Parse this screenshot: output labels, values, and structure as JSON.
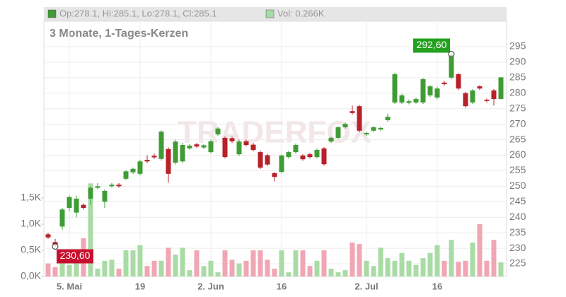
{
  "chart_data": {
    "type": "candlestick",
    "legend": {
      "ohlc": "Op:278.1, Hi:285.1, Lo:278.1, Cl:285.1",
      "volume": "Vol: 0.266K"
    },
    "subtitle": "3 Monate, 1-Tages-Kerzen",
    "watermark": "TRADERFOX",
    "categories": [
      null,
      null,
      null,
      "5. Mai",
      null,
      null,
      null,
      null,
      null,
      null,
      null,
      null,
      null,
      "19",
      null,
      null,
      null,
      null,
      null,
      null,
      null,
      null,
      null,
      "2. Jun",
      null,
      null,
      null,
      null,
      null,
      null,
      null,
      null,
      null,
      "16",
      null,
      null,
      null,
      null,
      null,
      null,
      null,
      null,
      null,
      null,
      null,
      "2. Jul",
      null,
      null,
      null,
      null,
      null,
      null,
      null,
      null,
      null,
      "16",
      null,
      null,
      null,
      null,
      null,
      null,
      null,
      null,
      null
    ],
    "open": [
      234.5,
      232,
      237,
      243,
      241.5,
      244,
      246,
      249.5,
      245,
      250,
      250.5,
      252.4,
      254.5,
      254,
      258.5,
      259.8,
      258.8,
      262,
      257.6,
      258,
      262.2,
      263.5,
      262.5,
      261,
      266.7,
      265.6,
      265.5,
      260.3,
      264.5,
      263.4,
      261,
      260,
      254.2,
      254.6,
      259.4,
      261,
      259.9,
      260.3,
      259.4,
      262.2,
      264.4,
      265.6,
      269,
      274.2,
      275.8,
      266.7,
      267.9,
      268.3,
      271.3,
      277,
      277,
      276.9,
      277,
      277,
      279.3,
      278.6,
      283.4,
      285,
      286.1,
      280,
      277,
      282.2,
      277.9,
      280.9,
      278.1
    ],
    "high": [
      235,
      233,
      243,
      247,
      247,
      244.5,
      250,
      251,
      249,
      251,
      251,
      255.2,
      256,
      258.5,
      260,
      260.5,
      268,
      262.5,
      265,
      264,
      263.6,
      264,
      263.6,
      265,
      269,
      266,
      266,
      265,
      265,
      264,
      261.5,
      260.5,
      254.6,
      260.3,
      261.5,
      263.8,
      260.3,
      260.8,
      262.2,
      262.6,
      266,
      269.4,
      270.5,
      276,
      276.2,
      267.6,
      269.4,
      269.2,
      273.4,
      286.6,
      279.8,
      278,
      278.6,
      284.9,
      282.6,
      282,
      284,
      292.6,
      286.5,
      280.4,
      281.3,
      282.6,
      278.3,
      281.3,
      285.1
    ],
    "low": [
      233,
      230.6,
      236,
      242,
      240,
      242.5,
      244,
      249,
      243,
      249.5,
      249.5,
      252,
      254,
      253.5,
      257.5,
      258.8,
      258.3,
      251.2,
      257,
      257.5,
      261.8,
      262.3,
      262,
      260.5,
      266.2,
      259,
      264,
      259.8,
      262.8,
      261.2,
      255.5,
      256.5,
      251.6,
      254.1,
      258.9,
      260.5,
      258.2,
      258.9,
      259,
      256.6,
      264,
      265.2,
      268.6,
      273.1,
      267.4,
      266.3,
      267.5,
      267.9,
      270.8,
      276.5,
      276.5,
      276.4,
      276.6,
      276.5,
      278.8,
      278.1,
      282.4,
      284.5,
      281,
      275.3,
      276.5,
      281,
      277,
      276,
      278.1
    ],
    "close": [
      233.5,
      231,
      242.5,
      246.5,
      246,
      243,
      249.5,
      250,
      248.5,
      250.5,
      250,
      254.8,
      255.6,
      258,
      258,
      259.3,
      267.6,
      254,
      264.4,
      263.3,
      263.1,
      262.8,
      263.2,
      264.5,
      268.6,
      259.4,
      264.5,
      264.4,
      263.3,
      261.7,
      256,
      257,
      253,
      259.9,
      261,
      263.3,
      258.7,
      259.4,
      261.7,
      257.1,
      265.6,
      269,
      270.1,
      273.6,
      267.9,
      267.2,
      269,
      268.8,
      272.4,
      286.1,
      279.3,
      277.4,
      278.1,
      284.5,
      282.2,
      281.5,
      282.9,
      292.3,
      281.5,
      275.8,
      280.9,
      281.5,
      277.5,
      278.1,
      285.1
    ],
    "volume": [
      0.25,
      0.18,
      0.3,
      0.22,
      0.35,
      0.73,
      1.78,
      0.15,
      0.3,
      0.32,
      0.15,
      0.5,
      0.5,
      0.6,
      0.2,
      0.3,
      0.3,
      0.55,
      0.42,
      0.55,
      0.12,
      0.5,
      0.2,
      0.3,
      0.08,
      0.5,
      0.32,
      0.25,
      0.3,
      0.5,
      0.5,
      0.32,
      0.15,
      0.5,
      0.08,
      0.5,
      0.5,
      0.2,
      0.3,
      0.5,
      0.15,
      0.08,
      0.12,
      0.65,
      0.62,
      0.3,
      0.2,
      0.55,
      0.35,
      0.3,
      0.45,
      0.3,
      0.22,
      0.35,
      0.45,
      0.6,
      0.3,
      0.7,
      0.28,
      0.3,
      0.65,
      1.0,
      0.3,
      0.7,
      0.27
    ],
    "colors": {
      "up": "#3f9c35",
      "down": "#b8202a",
      "volume_up": "#a9dba4",
      "volume_down": "#f0a6b3"
    },
    "annotations": [
      {
        "label": "292,60",
        "value": 292.6,
        "color": "#22a01e"
      },
      {
        "label": "230,60",
        "value": 230.6,
        "color": "#c8102e"
      }
    ],
    "ylim": [
      220.9,
      303.2
    ],
    "yticks": [
      225,
      230,
      235,
      240,
      245,
      250,
      255,
      260,
      265,
      270,
      275,
      280,
      285,
      290,
      295
    ],
    "y2lim": [
      0,
      4.88
    ],
    "y2ticks": [
      {
        "value": 0,
        "label": "0,0K"
      },
      {
        "value": 0.5,
        "label": "0,5K"
      },
      {
        "value": 1,
        "label": "1,0K"
      },
      {
        "value": 1.5,
        "label": "1,5K"
      }
    ],
    "grid": true
  }
}
